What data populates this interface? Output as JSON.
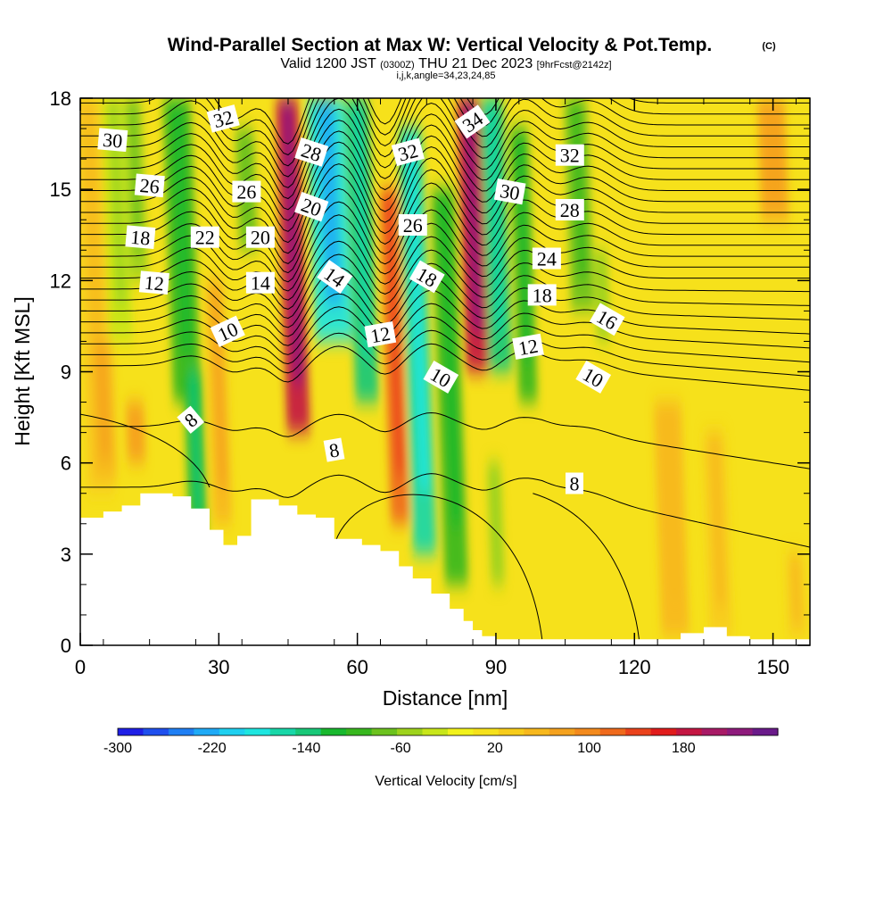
{
  "header": {
    "title": "Wind-Parallel Section at Max W: Vertical Velocity & Pot.Temp.",
    "copyright": "(C)",
    "valid_prefix": "Valid 1200 JST",
    "valid_utc": "(0300Z)",
    "valid_date": "THU 21 Dec 2023",
    "forecast": "[9hrFcst@2142z]",
    "indices": "i,j,k,angle=34,23,24,85"
  },
  "chart_data": {
    "type": "heatmap",
    "xlabel": "Distance [nm]",
    "ylabel": "Height [Kft MSL]",
    "xlim": [
      0,
      158
    ],
    "ylim": [
      0,
      18
    ],
    "x_ticks": [
      0,
      30,
      60,
      90,
      120,
      150
    ],
    "y_ticks": [
      0,
      3,
      6,
      9,
      12,
      15,
      18
    ],
    "colorbar": {
      "label": "Vertical Velocity [cm/s]",
      "tick_labels": [
        "-300",
        "-220",
        "-140",
        "-60",
        "20",
        "100",
        "180"
      ],
      "tick_values": [
        -300,
        -220,
        -140,
        -60,
        20,
        100,
        180
      ],
      "range": [
        -300,
        260
      ],
      "colors": [
        "#1f1fe6",
        "#1f4fee",
        "#1f7ff4",
        "#1faaf6",
        "#1fd0f0",
        "#1ee6e0",
        "#18d7a8",
        "#18c878",
        "#18b82e",
        "#38b71e",
        "#6cc21e",
        "#9ed31c",
        "#c8e61a",
        "#f2f21b",
        "#f6e11b",
        "#f7cc1b",
        "#f7b81d",
        "#f5a21e",
        "#f38a1d",
        "#ef6a1c",
        "#ea421c",
        "#e11c1c",
        "#c41642",
        "#a81a66",
        "#8e1a7c",
        "#6a1a8a"
      ]
    },
    "terrain_kft": [
      [
        0,
        4.2
      ],
      [
        5,
        4.4
      ],
      [
        9,
        4.6
      ],
      [
        13,
        5.0
      ],
      [
        20,
        4.9
      ],
      [
        24,
        4.5
      ],
      [
        28,
        3.8
      ],
      [
        31,
        3.3
      ],
      [
        34,
        3.6
      ],
      [
        37,
        4.8
      ],
      [
        43,
        4.6
      ],
      [
        47,
        4.3
      ],
      [
        51,
        4.2
      ],
      [
        55,
        3.5
      ],
      [
        61,
        3.3
      ],
      [
        65,
        3.1
      ],
      [
        69,
        2.6
      ],
      [
        72,
        2.2
      ],
      [
        76,
        1.7
      ],
      [
        80,
        1.2
      ],
      [
        83,
        0.8
      ],
      [
        85,
        0.5
      ],
      [
        87,
        0.3
      ],
      [
        90,
        0.2
      ],
      [
        100,
        0.2
      ],
      [
        110,
        0.2
      ],
      [
        125,
        0.2
      ],
      [
        130,
        0.4
      ],
      [
        135,
        0.6
      ],
      [
        140,
        0.3
      ],
      [
        145,
        0.2
      ],
      [
        150,
        0.2
      ],
      [
        158,
        0.2
      ]
    ],
    "vertical_velocity_cm_s": {
      "description_free_field": "background about 0 to 40 cm/s with upward and downward columns",
      "columns": [
        {
          "x": 3,
          "top": 18,
          "bottom": 5,
          "w": 40,
          "width_nm": 6
        },
        {
          "x": 8,
          "top": 18,
          "bottom": 10,
          "w": -40,
          "width_nm": 5
        },
        {
          "x": 12,
          "top": 18,
          "bottom": 12,
          "w": -60,
          "width_nm": 4
        },
        {
          "x": 22,
          "top": 18,
          "bottom": 8,
          "w": -100,
          "width_nm": 6
        },
        {
          "x": 25,
          "top": 9,
          "bottom": 3.5,
          "w": -110,
          "width_nm": 4
        },
        {
          "x": 30,
          "top": 12,
          "bottom": 4,
          "w": 60,
          "width_nm": 4
        },
        {
          "x": 36,
          "top": 17,
          "bottom": 13,
          "w": -70,
          "width_nm": 4
        },
        {
          "x": 46,
          "top": 18,
          "bottom": 7,
          "w": 180,
          "width_nm": 5
        },
        {
          "x": 54,
          "top": 18,
          "bottom": 10,
          "w": -180,
          "width_nm": 8
        },
        {
          "x": 61,
          "top": 18,
          "bottom": 8,
          "w": -130,
          "width_nm": 5
        },
        {
          "x": 68,
          "top": 15,
          "bottom": 4,
          "w": 120,
          "width_nm": 4
        },
        {
          "x": 73,
          "top": 17,
          "bottom": 3,
          "w": -150,
          "width_nm": 5
        },
        {
          "x": 80,
          "top": 15,
          "bottom": 2,
          "w": -90,
          "width_nm": 5
        },
        {
          "x": 85,
          "top": 18,
          "bottom": 9,
          "w": 180,
          "width_nm": 5
        },
        {
          "x": 90,
          "top": 18,
          "bottom": 9,
          "w": -140,
          "width_nm": 5
        },
        {
          "x": 96,
          "top": 17,
          "bottom": 8,
          "w": -90,
          "width_nm": 4
        },
        {
          "x": 108,
          "top": 18,
          "bottom": 11,
          "w": -80,
          "width_nm": 5
        },
        {
          "x": 113,
          "top": 13,
          "bottom": 10,
          "w": -50,
          "width_nm": 3
        },
        {
          "x": 90,
          "top": 6,
          "bottom": 2,
          "w": -50,
          "width_nm": 3
        },
        {
          "x": 5,
          "top": 10,
          "bottom": 5.5,
          "w": 60,
          "width_nm": 5
        },
        {
          "x": 12,
          "top": 8,
          "bottom": 6,
          "w": 70,
          "width_nm": 4
        },
        {
          "x": 128,
          "top": 8,
          "bottom": 0.3,
          "w": 50,
          "width_nm": 6
        },
        {
          "x": 138,
          "top": 7,
          "bottom": 0.3,
          "w": 40,
          "width_nm": 5
        },
        {
          "x": 150,
          "top": 18,
          "bottom": 14,
          "w": 70,
          "width_nm": 6
        },
        {
          "x": 155,
          "top": 3,
          "bottom": 0.3,
          "w": 40,
          "width_nm": 4
        }
      ]
    },
    "potential_temperature_labels": [
      {
        "text": "30",
        "x": 7,
        "y": 16.6,
        "angle": 5
      },
      {
        "text": "32",
        "x": 31,
        "y": 17.3,
        "angle": -15
      },
      {
        "text": "28",
        "x": 50,
        "y": 16.2,
        "angle": 18
      },
      {
        "text": "32",
        "x": 71,
        "y": 16.2,
        "angle": -15
      },
      {
        "text": "34",
        "x": 85,
        "y": 17.2,
        "angle": -35
      },
      {
        "text": "32",
        "x": 106,
        "y": 16.1,
        "angle": 0
      },
      {
        "text": "26",
        "x": 15,
        "y": 15.1,
        "angle": 5
      },
      {
        "text": "26",
        "x": 36,
        "y": 14.9,
        "angle": 0
      },
      {
        "text": "30",
        "x": 93,
        "y": 14.9,
        "angle": 10
      },
      {
        "text": "20",
        "x": 50,
        "y": 14.4,
        "angle": 20
      },
      {
        "text": "28",
        "x": 106,
        "y": 14.3,
        "angle": 0
      },
      {
        "text": "26",
        "x": 72,
        "y": 13.8,
        "angle": 0
      },
      {
        "text": "18",
        "x": 13,
        "y": 13.4,
        "angle": 5
      },
      {
        "text": "22",
        "x": 27,
        "y": 13.4,
        "angle": 0
      },
      {
        "text": "20",
        "x": 39,
        "y": 13.4,
        "angle": 0
      },
      {
        "text": "24",
        "x": 101,
        "y": 12.7,
        "angle": 0
      },
      {
        "text": "14",
        "x": 55,
        "y": 12.1,
        "angle": 35
      },
      {
        "text": "18",
        "x": 75,
        "y": 12.1,
        "angle": 30
      },
      {
        "text": "12",
        "x": 16,
        "y": 11.9,
        "angle": 5
      },
      {
        "text": "14",
        "x": 39,
        "y": 11.9,
        "angle": 0
      },
      {
        "text": "18",
        "x": 100,
        "y": 11.5,
        "angle": 0
      },
      {
        "text": "16",
        "x": 114,
        "y": 10.7,
        "angle": 30
      },
      {
        "text": "10",
        "x": 32,
        "y": 10.3,
        "angle": -25
      },
      {
        "text": "12",
        "x": 65,
        "y": 10.2,
        "angle": -10
      },
      {
        "text": "12",
        "x": 97,
        "y": 9.8,
        "angle": -10
      },
      {
        "text": "10",
        "x": 78,
        "y": 8.8,
        "angle": 30
      },
      {
        "text": "10",
        "x": 111,
        "y": 8.8,
        "angle": 30
      },
      {
        "text": "8",
        "x": 24,
        "y": 7.4,
        "angle": -40
      },
      {
        "text": "8",
        "x": 55,
        "y": 6.4,
        "angle": -10
      },
      {
        "text": "8",
        "x": 107,
        "y": 5.3,
        "angle": 0
      }
    ]
  }
}
